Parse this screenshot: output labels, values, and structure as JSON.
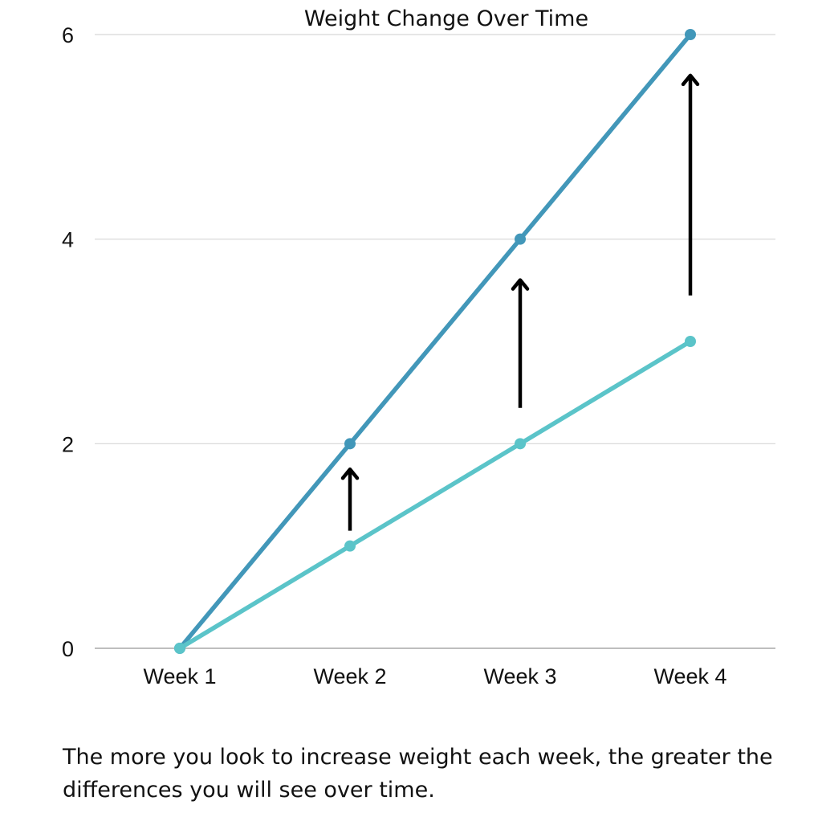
{
  "chart_data": {
    "type": "line",
    "title": "Weight Change Over Time",
    "xlabel": "",
    "ylabel": "",
    "categories": [
      "Week 1",
      "Week 2",
      "Week 3",
      "Week 4"
    ],
    "ylim": [
      0,
      6
    ],
    "yticks": [
      0,
      2,
      4,
      6
    ],
    "grid": true,
    "series": [
      {
        "values": [
          0,
          2,
          4,
          6
        ],
        "color": "#4297b9"
      },
      {
        "values": [
          0,
          1,
          2,
          3
        ],
        "color": "#5bc4c9"
      }
    ],
    "annotations": {
      "type": "upward-arrows",
      "color": "#000000",
      "arrows": [
        {
          "category": "Week 2",
          "from": 1.15,
          "to": 1.75
        },
        {
          "category": "Week 3",
          "from": 2.35,
          "to": 3.6
        },
        {
          "category": "Week 4",
          "from": 3.45,
          "to": 5.6
        }
      ]
    }
  },
  "caption": "The more you look to increase weight each week, the greater the differences you will see over time."
}
